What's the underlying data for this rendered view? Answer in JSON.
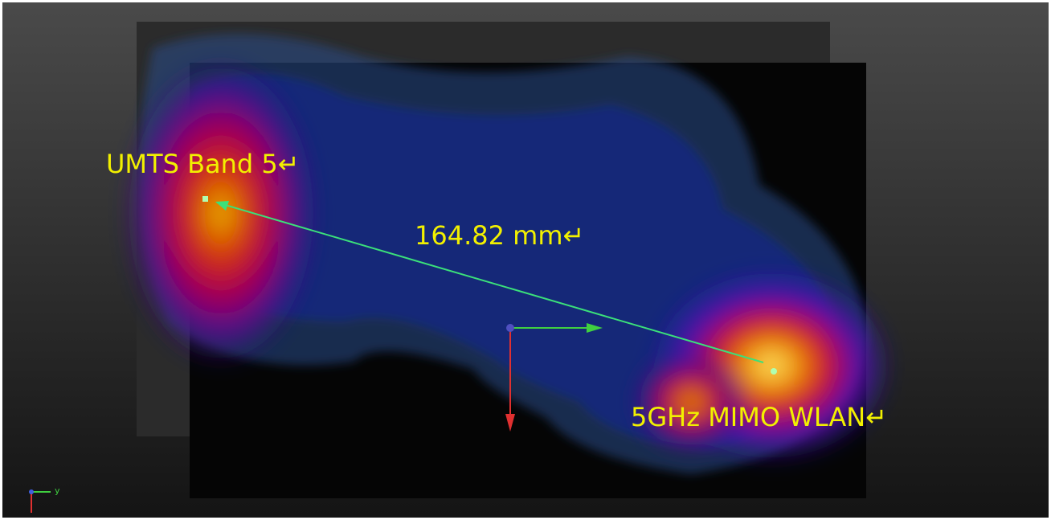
{
  "labels": {
    "source_a": "UMTS Band 5↵",
    "distance": "164.82 mm↵",
    "source_b": "5GHz MIMO WLAN↵"
  },
  "axis_triad": {
    "y_label": "y"
  }
}
